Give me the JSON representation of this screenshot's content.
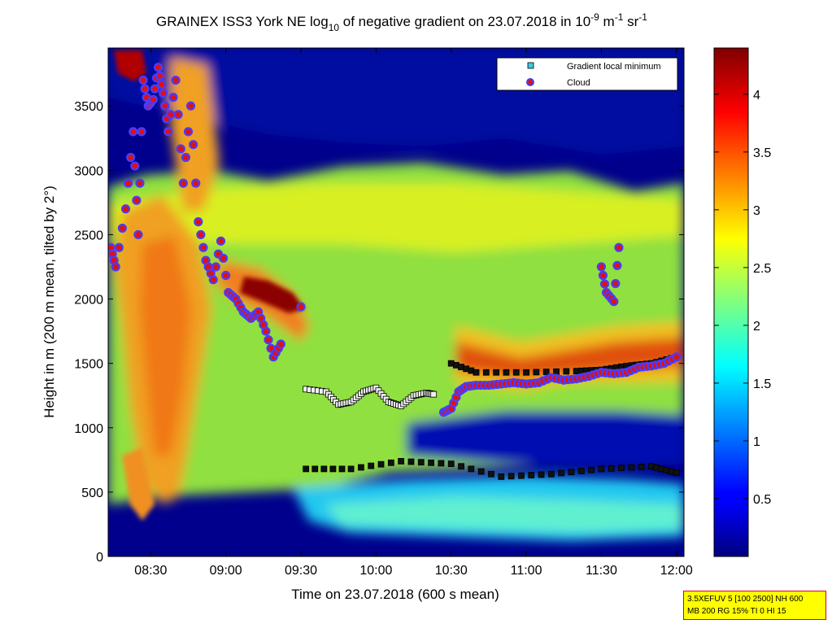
{
  "chart_data": {
    "type": "heatmap",
    "title": {
      "main": "GRAINEX ISS3 York NE log",
      "sub10": "10",
      "mid": " of negative gradient on 23.07.2018 in 10",
      "sup9": "-9",
      "unit1": " m",
      "sup1a": "-1",
      "unit2": " sr",
      "sup1b": "-1"
    },
    "xlabel": "Time on 23.07.2018 (600 s mean)",
    "ylabel": "Height in m (200 m mean, tilted by 2°)",
    "x_range_min": [
      493,
      723
    ],
    "y_range": [
      0,
      3950
    ],
    "x_ticks": [
      {
        "label": "08:30",
        "min": 510
      },
      {
        "label": "09:00",
        "min": 540
      },
      {
        "label": "09:30",
        "min": 570
      },
      {
        "label": "10:00",
        "min": 600
      },
      {
        "label": "10:30",
        "min": 630
      },
      {
        "label": "11:00",
        "min": 660
      },
      {
        "label": "11:30",
        "min": 690
      },
      {
        "label": "12:00",
        "min": 720
      }
    ],
    "y_ticks": [
      0,
      500,
      1000,
      1500,
      2000,
      2500,
      3000,
      3500
    ],
    "colorbar": {
      "range": [
        0,
        4.4
      ],
      "ticks": [
        {
          "label": "0.5",
          "v": 0.5
        },
        {
          "label": "1",
          "v": 1
        },
        {
          "label": "1.5",
          "v": 1.5
        },
        {
          "label": "2",
          "v": 2
        },
        {
          "label": "2.5",
          "v": 2.5
        },
        {
          "label": "3",
          "v": 3
        },
        {
          "label": "3.5",
          "v": 3.5
        },
        {
          "label": "4",
          "v": 4
        }
      ],
      "colormap": "jet"
    },
    "legend": {
      "placement": "top-right",
      "entries": [
        {
          "label": "Gradient local minimum",
          "color": "#40c8e0"
        },
        {
          "label": "Cloud",
          "color": "#e01010"
        }
      ]
    },
    "series": [
      {
        "name": "Gradient local minimum",
        "segments": [
          {
            "x": [
              572,
              580,
              585,
              590,
              595,
              600,
              605,
              610,
              615,
              620,
              623
            ],
            "y": [
              1300,
              1280,
              1180,
              1200,
              1280,
              1310,
              1200,
              1170,
              1250,
              1270,
              1260
            ]
          },
          {
            "x": [
              572,
              590,
              610,
              630,
              650,
              670,
              690,
              710,
              720
            ],
            "y": [
              680,
              680,
              740,
              720,
              620,
              640,
              680,
              700,
              650
            ]
          },
          {
            "x": [
              630,
              640,
              660,
              680,
              690,
              700,
              710,
              720
            ],
            "y": [
              1500,
              1430,
              1430,
              1440,
              1450,
              1480,
              1500,
              1550
            ]
          }
        ]
      },
      {
        "name": "Cloud",
        "segments": [
          {
            "x": [
              494,
              496,
              500,
              503,
              505,
              507,
              509,
              511,
              513,
              515,
              517,
              520,
              523,
              526,
              529,
              532,
              535,
              538,
              541,
              544,
              547,
              550,
              553,
              556,
              559,
              562
            ],
            "y": [
              2400,
              2250,
              2700,
              3300,
              2500,
              3700,
              3500,
              3550,
              3800,
              3600,
              3300,
              3700,
              2900,
              3500,
              2600,
              2300,
              2150,
              2450,
              2050,
              2000,
              1900,
              1850,
              1900,
              1750,
              1550,
              1650
            ]
          },
          {
            "x": [
              570
            ],
            "y": [
              1940
            ]
          },
          {
            "x": [
              627,
              630,
              633,
              636,
              640,
              645,
              650,
              655,
              660,
              665,
              670,
              675,
              680,
              685,
              690,
              695,
              700,
              705,
              710,
              715,
              720
            ],
            "y": [
              1120,
              1150,
              1280,
              1320,
              1330,
              1330,
              1340,
              1350,
              1340,
              1350,
              1390,
              1370,
              1380,
              1400,
              1430,
              1420,
              1430,
              1470,
              1480,
              1500,
              1550
            ]
          },
          {
            "x": [
              690,
              692,
              695,
              697
            ],
            "y": [
              2250,
              2050,
              1980,
              2400
            ]
          }
        ]
      }
    ]
  },
  "info_box": {
    "line1": "3.5XEFUV 5 [100 2500] NH 600",
    "line2": "MB 200 RG 15% TI 0 HI 15"
  }
}
